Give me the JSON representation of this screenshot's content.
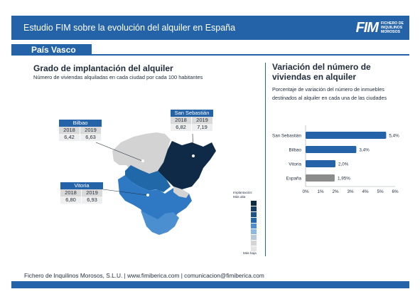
{
  "header": {
    "title": "Estudio FIM sobre la evolución del alquiler en España",
    "logo_mark": "FIM",
    "logo_lines": [
      "FICHERO DE",
      "INQUILINOS",
      "MOROSOS"
    ]
  },
  "region": {
    "label": "País Vasco"
  },
  "left_panel": {
    "title": "Grado de implantación del alquiler",
    "subtitle": "Número de viviendas alquiladas en cada ciudad por cada 100 habitantes"
  },
  "callouts": [
    {
      "name": "Bilbao",
      "year_a": "2018",
      "year_b": "2019",
      "value_a": "6,42",
      "value_b": "6,63"
    },
    {
      "name": "San Sebastián",
      "year_a": "2018",
      "year_b": "2019",
      "value_a": "6,82",
      "value_b": "7,19"
    },
    {
      "name": "Vitoria",
      "year_a": "2018",
      "year_b": "2019",
      "value_a": "6,80",
      "value_b": "6,93"
    }
  ],
  "legend": {
    "title": "Implantación:",
    "top": "Más alta",
    "bottom": "Más baja",
    "colors": [
      "#0e2a47",
      "#143d66",
      "#1b5287",
      "#2068a7",
      "#4b8fd0",
      "#8db8e2",
      "#b9c8d8",
      "#d4d4d4",
      "#e5e5e5"
    ]
  },
  "right_panel": {
    "title": "Variación del número de viviendas en alquiler",
    "subtitle": "Porcentaje de variación del número de inmuebles destinados al alquiler en cada una de las ciudades"
  },
  "chart_data": {
    "type": "bar",
    "orientation": "horizontal",
    "categories": [
      "San Sebastián",
      "Bilbao",
      "Vitoria",
      "España"
    ],
    "values": [
      5.4,
      3.4,
      2.0,
      1.95
    ],
    "value_labels": [
      "5,4%",
      "3,4%",
      "2,0%",
      "1,95%"
    ],
    "xlim": [
      0,
      6
    ],
    "x_ticks": [
      "0%",
      "1%",
      "2%",
      "3%",
      "4%",
      "5%",
      "6%"
    ],
    "bar_colors": [
      "#2563a8",
      "#2563a8",
      "#2563a8",
      "#8c8c8c"
    ],
    "grid": false
  },
  "footer": {
    "text": "Fichero de Inquilinos Morosos, S.L.U. | www.fimiberica.com | comunicacion@fimiberica.com"
  }
}
